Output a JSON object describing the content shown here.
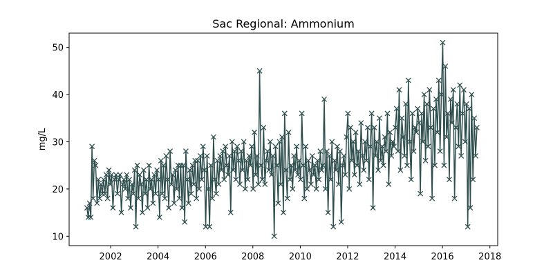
{
  "chart_data": {
    "type": "line",
    "title": "Sac Regional: Ammonium",
    "xlabel": "",
    "ylabel": "mg/L",
    "xlim": [
      "2000-04-01",
      "2018-05-01"
    ],
    "ylim": [
      8,
      53
    ],
    "x_ticks": [
      "2002",
      "2004",
      "2006",
      "2008",
      "2010",
      "2012",
      "2014",
      "2016",
      "2018"
    ],
    "y_ticks": [
      "10",
      "20",
      "30",
      "40",
      "50"
    ],
    "grid": false,
    "legend": "none",
    "marker": "x",
    "color": "#2f4f4f",
    "series": [
      {
        "x": [
          "2001-01-01",
          "2001-01-20",
          "2001-02-10",
          "2001-03-01",
          "2001-03-20",
          "2001-04-05",
          "2001-04-25",
          "2001-05-15",
          "2001-06-05",
          "2001-06-25",
          "2001-07-15",
          "2001-08-05",
          "2001-08-25",
          "2001-09-15",
          "2001-10-05",
          "2001-10-25",
          "2001-11-15",
          "2001-12-05",
          "2001-12-25",
          "2002-01-15",
          "2002-02-05",
          "2002-03-01",
          "2002-03-25",
          "2002-04-15",
          "2002-05-05",
          "2002-05-25",
          "2002-06-15",
          "2002-07-05",
          "2002-07-25",
          "2002-08-15",
          "2002-09-05",
          "2002-09-25",
          "2002-10-15",
          "2002-11-05",
          "2002-11-25",
          "2002-12-15",
          "2003-01-05",
          "2003-01-25",
          "2003-02-15",
          "2003-03-05",
          "2003-03-25",
          "2003-04-15",
          "2003-05-05",
          "2003-05-25",
          "2003-06-15",
          "2003-07-05",
          "2003-07-25",
          "2003-08-15",
          "2003-09-05",
          "2003-09-25",
          "2003-10-15",
          "2003-11-05",
          "2003-11-25",
          "2003-12-15",
          "2004-01-05",
          "2004-01-25",
          "2004-02-15",
          "2004-03-05",
          "2004-03-25",
          "2004-04-15",
          "2004-05-05",
          "2004-05-25",
          "2004-06-15",
          "2004-07-05",
          "2004-07-25",
          "2004-08-15",
          "2004-09-05",
          "2004-09-25",
          "2004-10-15",
          "2004-11-05",
          "2004-11-25",
          "2004-12-15",
          "2005-01-05",
          "2005-01-25",
          "2005-02-15",
          "2005-03-05",
          "2005-03-25",
          "2005-04-15",
          "2005-05-05",
          "2005-05-25",
          "2005-06-15",
          "2005-07-05",
          "2005-07-25",
          "2005-08-15",
          "2005-09-05",
          "2005-09-25",
          "2005-10-15",
          "2005-11-05",
          "2005-11-25",
          "2005-12-15",
          "2006-01-05",
          "2006-01-25",
          "2006-02-15",
          "2006-03-05",
          "2006-03-25",
          "2006-04-15",
          "2006-05-05",
          "2006-05-25",
          "2006-06-15",
          "2006-07-05",
          "2006-07-25",
          "2006-08-15",
          "2006-09-05",
          "2006-09-25",
          "2006-10-15",
          "2006-11-05",
          "2006-11-25",
          "2006-12-15",
          "2007-01-05",
          "2007-01-25",
          "2007-02-15",
          "2007-03-05",
          "2007-03-25",
          "2007-04-15",
          "2007-05-05",
          "2007-05-25",
          "2007-06-15",
          "2007-07-05",
          "2007-07-25",
          "2007-08-15",
          "2007-09-05",
          "2007-09-25",
          "2007-10-15",
          "2007-11-05",
          "2007-11-25",
          "2007-12-15",
          "2008-01-05",
          "2008-01-25",
          "2008-02-15",
          "2008-03-05",
          "2008-03-25",
          "2008-04-15",
          "2008-05-05",
          "2008-05-25",
          "2008-06-15",
          "2008-07-05",
          "2008-07-25",
          "2008-08-15",
          "2008-09-05",
          "2008-09-25",
          "2008-10-15",
          "2008-11-05",
          "2008-11-25",
          "2008-12-15",
          "2009-01-05",
          "2009-01-25",
          "2009-02-15",
          "2009-03-05",
          "2009-03-25",
          "2009-04-15",
          "2009-05-05",
          "2009-05-25",
          "2009-06-15",
          "2009-07-05",
          "2009-07-25",
          "2009-08-15",
          "2009-09-05",
          "2009-09-25",
          "2009-10-15",
          "2009-11-05",
          "2009-11-25",
          "2009-12-15",
          "2010-01-05",
          "2010-01-25",
          "2010-02-15",
          "2010-03-05",
          "2010-03-25",
          "2010-04-15",
          "2010-05-05",
          "2010-05-25",
          "2010-06-15",
          "2010-07-05",
          "2010-07-25",
          "2010-08-15",
          "2010-09-05",
          "2010-09-25",
          "2010-10-15",
          "2010-11-05",
          "2010-11-25",
          "2010-12-15",
          "2011-01-05",
          "2011-01-25",
          "2011-02-15",
          "2011-03-05",
          "2011-03-25",
          "2011-04-15",
          "2011-05-05",
          "2011-05-25",
          "2011-06-15",
          "2011-07-05",
          "2011-07-25",
          "2011-08-15",
          "2011-09-05",
          "2011-09-25",
          "2011-10-15",
          "2011-11-05",
          "2011-11-25",
          "2011-12-15",
          "2012-01-05",
          "2012-01-25",
          "2012-02-15",
          "2012-03-05",
          "2012-03-25",
          "2012-04-15",
          "2012-05-05",
          "2012-05-25",
          "2012-06-15",
          "2012-07-05",
          "2012-07-25",
          "2012-08-15",
          "2012-09-05",
          "2012-09-25",
          "2012-10-15",
          "2012-11-05",
          "2012-11-25",
          "2012-12-15",
          "2013-01-05",
          "2013-01-25",
          "2013-02-15",
          "2013-03-05",
          "2013-03-25",
          "2013-04-15",
          "2013-05-05",
          "2013-05-25",
          "2013-06-15",
          "2013-07-05",
          "2013-07-25",
          "2013-08-15",
          "2013-09-05",
          "2013-09-25",
          "2013-10-15",
          "2013-11-05",
          "2013-11-25",
          "2013-12-15",
          "2014-01-05",
          "2014-01-25",
          "2014-02-15",
          "2014-03-05",
          "2014-03-25",
          "2014-04-15",
          "2014-05-05",
          "2014-05-25",
          "2014-06-15",
          "2014-07-05",
          "2014-07-25",
          "2014-08-15",
          "2014-09-05",
          "2014-09-25",
          "2014-10-15",
          "2014-11-05",
          "2014-11-25",
          "2014-12-15",
          "2015-01-05",
          "2015-01-25",
          "2015-02-15",
          "2015-03-05",
          "2015-03-25",
          "2015-04-15",
          "2015-05-05",
          "2015-05-25",
          "2015-06-15",
          "2015-07-05",
          "2015-07-25",
          "2015-08-15",
          "2015-09-05",
          "2015-09-25",
          "2015-10-15",
          "2015-11-05",
          "2015-11-25",
          "2015-12-15",
          "2016-01-05",
          "2016-01-25",
          "2016-02-15",
          "2016-03-05",
          "2016-03-25",
          "2016-04-15",
          "2016-05-05",
          "2016-05-25",
          "2016-06-15",
          "2016-07-05",
          "2016-07-25",
          "2016-08-15",
          "2016-09-05",
          "2016-09-25",
          "2016-10-15",
          "2016-11-05",
          "2016-11-25",
          "2016-12-15",
          "2017-01-05",
          "2017-01-25",
          "2017-02-15",
          "2017-03-05",
          "2017-03-25",
          "2017-04-15",
          "2017-05-05",
          "2017-05-25",
          "2017-06-15"
        ],
        "y": [
          16,
          14,
          17,
          14,
          29,
          18,
          26,
          25,
          17,
          22,
          18,
          21,
          19,
          22,
          19,
          23,
          18,
          24,
          21,
          23,
          16,
          22,
          23,
          19,
          22,
          23,
          15,
          21,
          22,
          20,
          23,
          18,
          22,
          16,
          21,
          19,
          24,
          12,
          25,
          18,
          23,
          21,
          15,
          24,
          19,
          22,
          16,
          25,
          20,
          22,
          17,
          23,
          19,
          24,
          22,
          14,
          26,
          19,
          25,
          18,
          27,
          22,
          16,
          28,
          21,
          23,
          17,
          24,
          20,
          25,
          18,
          25,
          16,
          25,
          13,
          28,
          22,
          17,
          24,
          19,
          25,
          21,
          26,
          18,
          26,
          20,
          27,
          22,
          29,
          24,
          12,
          27,
          20,
          12,
          25,
          18,
          31,
          22,
          19,
          26,
          21,
          27,
          24,
          28,
          22,
          29,
          25,
          23,
          27,
          15,
          30,
          24,
          28,
          22,
          29,
          26,
          21,
          28,
          24,
          30,
          20,
          26,
          22,
          27,
          25,
          29,
          20,
          32,
          23,
          27,
          21,
          45,
          25,
          22,
          33,
          21,
          26,
          28,
          24,
          30,
          23,
          27,
          10,
          29,
          25,
          17,
          30,
          21,
          31,
          15,
          36,
          24,
          18,
          32,
          22,
          25,
          20,
          27,
          24,
          29,
          23,
          26,
          22,
          36,
          25,
          18,
          29,
          20,
          26,
          24,
          21,
          27,
          23,
          25,
          20,
          26,
          22,
          28,
          24,
          25,
          39,
          20,
          28,
          15,
          27,
          22,
          30,
          12,
          26,
          24,
          29,
          21,
          28,
          13,
          25,
          27,
          23,
          31,
          36,
          20,
          33,
          26,
          30,
          23,
          32,
          25,
          28,
          21,
          34,
          27,
          24,
          30,
          26,
          33,
          22,
          29,
          36,
          16,
          33,
          27,
          30,
          24,
          35,
          26,
          29,
          25,
          31,
          28,
          36,
          21,
          32,
          27,
          30,
          29,
          33,
          37,
          28,
          41,
          24,
          35,
          31,
          27,
          38,
          25,
          43,
          30,
          22,
          36,
          28,
          33,
          32,
          37,
          34,
          19,
          36,
          30,
          40,
          26,
          38,
          29,
          41,
          33,
          18,
          37,
          25,
          39,
          32,
          43,
          28,
          40,
          51,
          25,
          46,
          31,
          36,
          22,
          39,
          34,
          41,
          18,
          33,
          38,
          29,
          42,
          27,
          36,
          41,
          30,
          38,
          12,
          37,
          16,
          40,
          22,
          35,
          27,
          33
        ]
      }
    ]
  }
}
